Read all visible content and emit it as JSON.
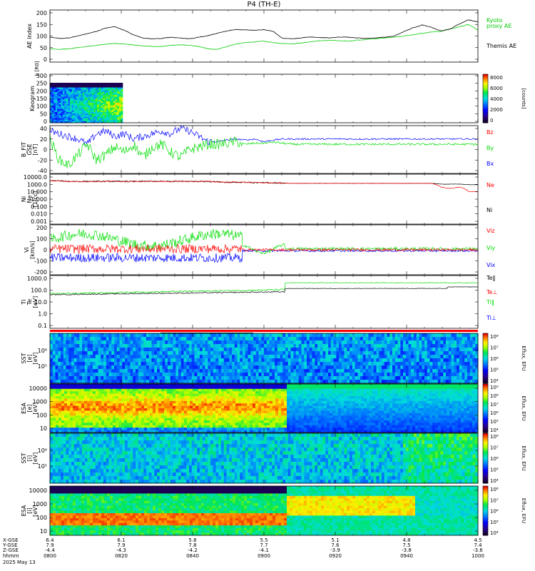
{
  "title": "P4 (TH-E)",
  "colors": {
    "black": "#000000",
    "red": "#ff0000",
    "green": "#00dd00",
    "blue": "#0000ff",
    "kyoto": "#00cc00"
  },
  "chart_data": [
    {
      "id": "ae",
      "type": "line",
      "ylabel": "AE index",
      "yticks": [
        "200",
        "150",
        "100",
        "50",
        "0"
      ],
      "ylim": [
        0,
        200
      ],
      "series": [
        {
          "name": "Themis AE",
          "color": "#000000",
          "values": [
            95,
            90,
            92,
            100,
            110,
            120,
            135,
            140,
            125,
            105,
            92,
            88,
            90,
            95,
            92,
            88,
            95,
            102,
            112,
            122,
            128,
            126,
            125,
            128,
            120,
            90,
            88,
            92,
            96,
            94,
            92,
            96,
            95,
            92,
            90,
            92,
            95,
            100,
            118,
            135,
            148,
            138,
            122,
            130,
            152,
            170,
            160
          ]
        },
        {
          "name": "Kyoto\nproxy AE",
          "color": "#00cc00",
          "values": [
            45,
            42,
            45,
            50,
            55,
            60,
            65,
            68,
            66,
            62,
            58,
            55,
            55,
            60,
            62,
            60,
            55,
            45,
            42,
            55,
            65,
            72,
            75,
            78,
            72,
            68,
            66,
            70,
            75,
            80,
            82,
            80,
            78,
            82,
            85,
            88,
            92,
            95,
            100,
            105,
            112,
            118,
            120,
            130,
            140,
            150,
            125
          ]
        }
      ]
    },
    {
      "id": "keogram",
      "type": "heatmap",
      "ylabel": "Keogram",
      "yunit": "k [R0]",
      "yticks": [
        "300",
        "250",
        "200",
        "150",
        "100",
        "50",
        "0"
      ],
      "colorbar": {
        "ticks": [
          "8000",
          "6000",
          "4000",
          "2000",
          "0"
        ],
        "label": "[counts]"
      }
    },
    {
      "id": "bfield",
      "type": "line",
      "ylabel": "B_FIT\nGSE\n[nT]",
      "yticks": [
        "40",
        "20",
        "0",
        "-20",
        "-40"
      ],
      "ylim": [
        -40,
        40
      ],
      "series": [
        {
          "name": "Bz",
          "color": "#ff0000",
          "values": [
            0
          ]
        },
        {
          "name": "By",
          "color": "#00dd00",
          "values": [
            20,
            -20,
            -30,
            -10,
            10,
            -20,
            -10,
            5,
            -5,
            10,
            -15,
            5,
            10,
            -5,
            -15,
            0,
            5,
            10,
            10,
            12,
            15,
            10,
            12,
            12,
            14,
            12,
            10,
            10,
            10,
            10,
            10,
            10,
            10,
            10,
            10,
            10,
            10,
            10,
            10,
            10,
            10,
            10,
            10,
            10,
            10,
            10,
            10
          ]
        },
        {
          "name": "Bx",
          "color": "#0000ff",
          "values": [
            35,
            30,
            25,
            20,
            10,
            30,
            35,
            25,
            30,
            20,
            25,
            30,
            35,
            30,
            40,
            35,
            25,
            15,
            15,
            18,
            20,
            18,
            20,
            15,
            18,
            20,
            20,
            20,
            20,
            20,
            20,
            20,
            20,
            20,
            20,
            20,
            20,
            20,
            20,
            20,
            20,
            20,
            20,
            20,
            20,
            20,
            20
          ]
        }
      ]
    },
    {
      "id": "density",
      "type": "line",
      "ylabel": "Ni\nNe\n[1/cc]",
      "yticks": [
        "10000.0",
        "1000.0",
        "10.000",
        "1.000",
        "0.100",
        "0.010",
        "0.001"
      ],
      "series": [
        {
          "name": "Ne",
          "color": "#ff0000",
          "values": [
            5,
            5,
            4,
            4,
            4,
            4,
            4,
            4,
            4,
            4,
            4,
            4,
            4,
            4,
            4,
            4,
            4,
            4,
            3.5,
            3,
            3,
            3,
            2.5,
            2.5,
            2.2,
            2.2,
            2,
            2,
            2,
            2,
            2,
            2,
            2,
            2,
            2,
            2,
            2,
            2,
            2,
            2,
            2,
            2,
            0.5,
            0.3,
            0.5,
            0.1,
            0.1
          ]
        },
        {
          "name": "Ni",
          "color": "#000000",
          "values": [
            5,
            5,
            4,
            4,
            4,
            4,
            4,
            4,
            4,
            4,
            4,
            4,
            4,
            4,
            4,
            4,
            4,
            4,
            3.5,
            3,
            3,
            3,
            2.5,
            2.5,
            2.2,
            2.2,
            2,
            2,
            2,
            2,
            2,
            2,
            2,
            2,
            2,
            2,
            2,
            2,
            2,
            2,
            2,
            2,
            1.5,
            1.5,
            1.5,
            1.2,
            1.2
          ]
        }
      ]
    },
    {
      "id": "velocity",
      "type": "line",
      "ylabel": "Vi\n[km/s]",
      "yticks": [
        "200",
        "100",
        "0",
        "-100",
        "-200"
      ],
      "ylim": [
        -250,
        250
      ],
      "series": [
        {
          "name": "Viz",
          "color": "#ff0000",
          "values": [
            0
          ]
        },
        {
          "name": "Viy",
          "color": "#00dd00",
          "values": [
            0
          ]
        },
        {
          "name": "Vix",
          "color": "#0000ff",
          "values": [
            0
          ]
        }
      ]
    },
    {
      "id": "temperature",
      "type": "line",
      "ylabel": "Ti\nTe\n[eV]",
      "yticks": [
        "1000.0",
        "100.0",
        "10.0",
        "1.0",
        "0.1"
      ],
      "series": [
        {
          "name": "Te‖",
          "color": "#000000",
          "values": [
            0
          ]
        },
        {
          "name": "Te⊥",
          "color": "#ff0000",
          "values": [
            0
          ]
        },
        {
          "name": "Ti‖",
          "color": "#00dd00",
          "values": [
            0
          ]
        },
        {
          "name": "Ti⊥",
          "color": "#0000ff",
          "values": [
            0
          ]
        }
      ]
    },
    {
      "id": "sst-e",
      "type": "heatmap",
      "ylabel": "SST\n[e]\n[eV]",
      "yticks": [
        "10⁶",
        "10⁵"
      ],
      "colorbar": {
        "ticks": [
          "10⁸",
          "10⁷",
          "10⁶",
          "10⁵",
          "10⁴"
        ],
        "label": "Eflux, EFU"
      }
    },
    {
      "id": "esa-e",
      "type": "heatmap",
      "ylabel": "ESA\n[e]\n[eV]",
      "yticks": [
        "10000",
        "1000",
        "100",
        "10"
      ],
      "colorbar": {
        "ticks": [
          "10⁹",
          "10⁸",
          "10⁷",
          "10⁶",
          "10⁵",
          "10⁴"
        ],
        "label": "Eflux, EFU"
      }
    },
    {
      "id": "sst-i",
      "type": "heatmap",
      "ylabel": "SST\n[i]\n[eV]",
      "yticks": [
        "10⁶",
        "10⁵"
      ],
      "colorbar": {
        "ticks": [
          "10⁸",
          "10⁷",
          "10⁶",
          "10⁵",
          "10⁴"
        ],
        "label": "Eflux, EFU"
      }
    },
    {
      "id": "esa-i",
      "type": "heatmap",
      "ylabel": "ESA\n[i]\n[eV]",
      "yticks": [
        "10000",
        "1000",
        "100",
        "10"
      ],
      "colorbar": {
        "ticks": [
          "10⁸",
          "10⁷",
          "10⁶",
          "10⁵",
          "10⁴"
        ],
        "label": "Eflux, EFU"
      }
    }
  ],
  "xaxis": {
    "row_labels": [
      "X-GSE",
      "Y-GSE",
      "Z-GSE",
      "hhmm",
      "2025 May 13"
    ],
    "ticks": [
      {
        "x": "6.4",
        "y": "7.9",
        "z": "-4.4",
        "t": "0800"
      },
      {
        "x": "6.1",
        "y": "7.9",
        "z": "-4.3",
        "t": "0820"
      },
      {
        "x": "5.8",
        "y": "7.8",
        "z": "-4.2",
        "t": "0840"
      },
      {
        "x": "5.5",
        "y": "7.7",
        "z": "-4.1",
        "t": "0900"
      },
      {
        "x": "5.1",
        "y": "7.6",
        "z": "-3.9",
        "t": "0920"
      },
      {
        "x": "4.8",
        "y": "7.5",
        "z": "-3.8",
        "t": "0940"
      },
      {
        "x": "4.5",
        "y": "7.4",
        "z": "-3.6",
        "t": "1000"
      }
    ]
  }
}
